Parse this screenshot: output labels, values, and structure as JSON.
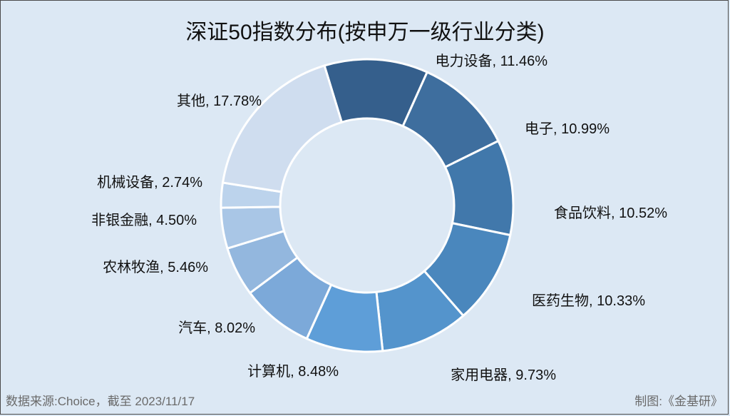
{
  "chart_data": {
    "type": "pie",
    "title": "深证50指数分布(按申万一级行业分类)",
    "slices": [
      {
        "name": "电力设备",
        "value": 11.46,
        "label": "电力设备, 11.46%",
        "color": "#355f8c"
      },
      {
        "name": "电子",
        "value": 10.99,
        "label": "电子, 10.99%",
        "color": "#3e6e9e"
      },
      {
        "name": "食品饮料",
        "value": 10.52,
        "label": "食品饮料, 10.52%",
        "color": "#4178ab"
      },
      {
        "name": "医药生物",
        "value": 10.33,
        "label": "医药生物, 10.33%",
        "color": "#4a87bd"
      },
      {
        "name": "家用电器",
        "value": 9.73,
        "label": "家用电器, 9.73%",
        "color": "#5494cc"
      },
      {
        "name": "计算机",
        "value": 8.48,
        "label": "计算机, 8.48%",
        "color": "#5e9ed8"
      },
      {
        "name": "汽车",
        "value": 8.02,
        "label": "汽车, 8.02%",
        "color": "#7ca9d9"
      },
      {
        "name": "农林牧渔",
        "value": 5.46,
        "label": "农林牧渔, 5.46%",
        "color": "#93b7de"
      },
      {
        "name": "非银金融",
        "value": 4.5,
        "label": "非银金融, 4.50%",
        "color": "#a9c6e6"
      },
      {
        "name": "机械设备",
        "value": 2.74,
        "label": "机械设备, 2.74%",
        "color": "#bcd3ec"
      },
      {
        "name": "其他",
        "value": 17.78,
        "label": "其他, 17.78%",
        "color": "#cfddef"
      }
    ]
  },
  "footer": {
    "source": "数据来源:Choice，截至 2023/11/17",
    "credit": "制图:《金基研》"
  }
}
